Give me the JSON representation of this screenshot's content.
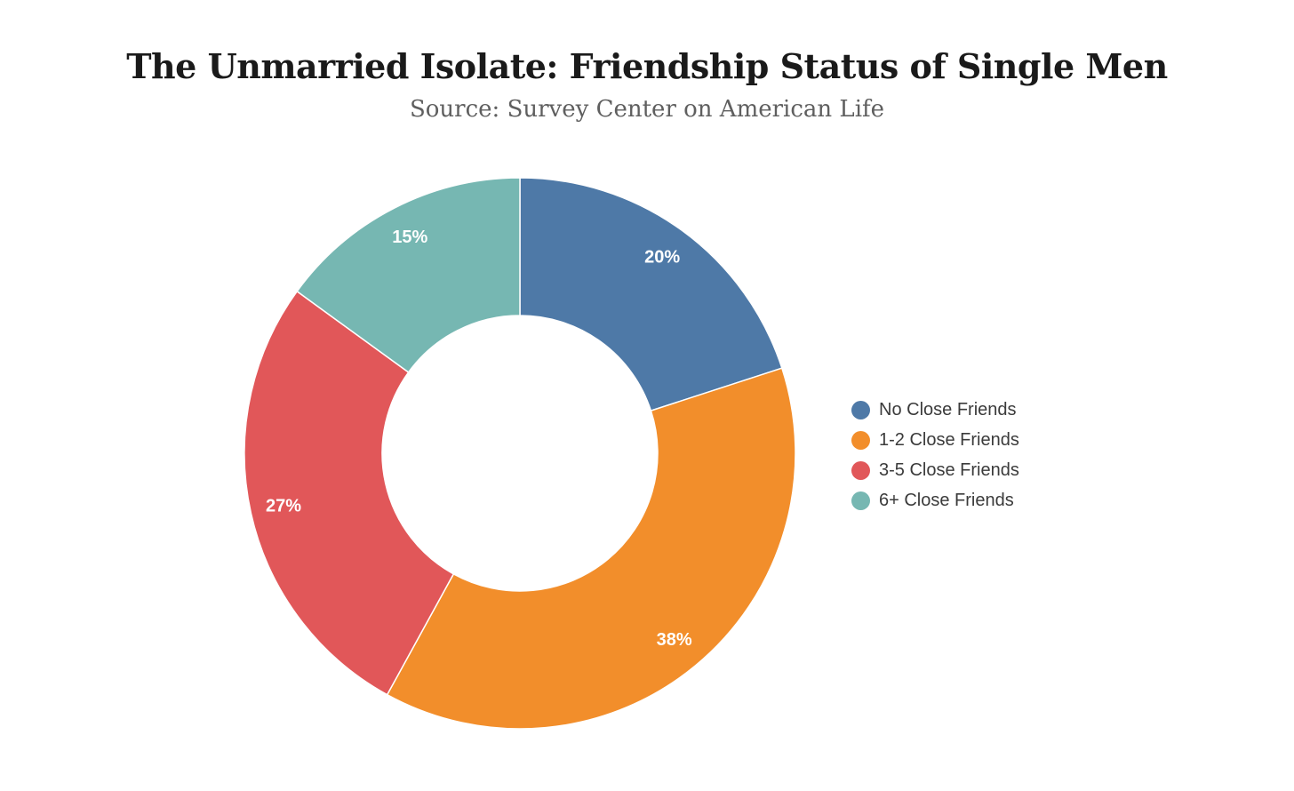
{
  "chart_data": {
    "type": "pie",
    "donut": true,
    "title": "The Unmarried Isolate: Friendship Status of Single Men",
    "subtitle": "Source: Survey Center on American Life",
    "legend_position": "right",
    "slices": [
      {
        "label": "No Close Friends",
        "value": 20,
        "display": "20%",
        "color": "#4e79a7"
      },
      {
        "label": "1-2 Close Friends",
        "value": 38,
        "display": "38%",
        "color": "#f28e2b"
      },
      {
        "label": "3-5 Close Friends",
        "value": 27,
        "display": "27%",
        "color": "#e15759"
      },
      {
        "label": "6+ Close Friends",
        "value": 15,
        "display": "15%",
        "color": "#76b7b2"
      }
    ]
  }
}
